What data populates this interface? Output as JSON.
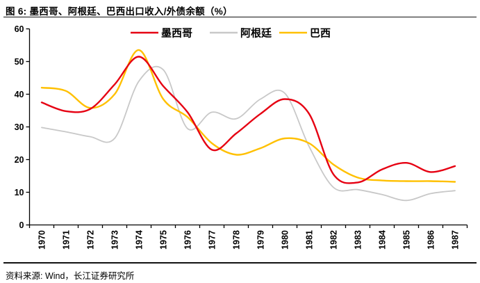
{
  "figure": {
    "title": "图 6: 墨西哥、阿根廷、巴西出口收入/外债余额（%）",
    "source": "资料来源: Wind，长江证券研究所"
  },
  "colors": {
    "mexico": "#e60012",
    "argentina": "#c8c8c8",
    "brazil": "#ffc000",
    "axis": "#000000",
    "text": "#000000"
  },
  "chart_data": {
    "type": "line",
    "title": "墨西哥、阿根廷、巴西出口收入/外债余额（%）",
    "x": [
      "1970",
      "1971",
      "1972",
      "1973",
      "1974",
      "1975",
      "1976",
      "1977",
      "1978",
      "1979",
      "1980",
      "1981",
      "1982",
      "1983",
      "1984",
      "1985",
      "1986",
      "1987"
    ],
    "ylim": [
      0,
      60
    ],
    "yticks": [
      0,
      10,
      20,
      30,
      40,
      50,
      60
    ],
    "grid": false,
    "legend_position": "top-center-inside",
    "series": [
      {
        "key": "mexico",
        "name": "墨西哥",
        "values": [
          37.5,
          34.8,
          35.5,
          43.0,
          51.5,
          42.5,
          34.5,
          23.0,
          28.0,
          34.0,
          38.5,
          34.0,
          15.5,
          13.0,
          17.0,
          19.0,
          16.2,
          18.0
        ]
      },
      {
        "key": "argentina",
        "name": "阿根廷",
        "values": [
          29.8,
          28.5,
          27.0,
          26.5,
          44.0,
          47.5,
          29.5,
          34.5,
          32.5,
          38.5,
          40.3,
          24.0,
          11.5,
          10.8,
          9.3,
          7.5,
          9.6,
          10.5
        ]
      },
      {
        "key": "brazil",
        "name": "巴西",
        "values": [
          42.0,
          41.0,
          35.8,
          40.0,
          53.5,
          38.5,
          33.0,
          25.0,
          21.5,
          23.5,
          26.5,
          25.0,
          18.5,
          14.5,
          13.6,
          13.4,
          13.4,
          13.2
        ]
      }
    ]
  }
}
